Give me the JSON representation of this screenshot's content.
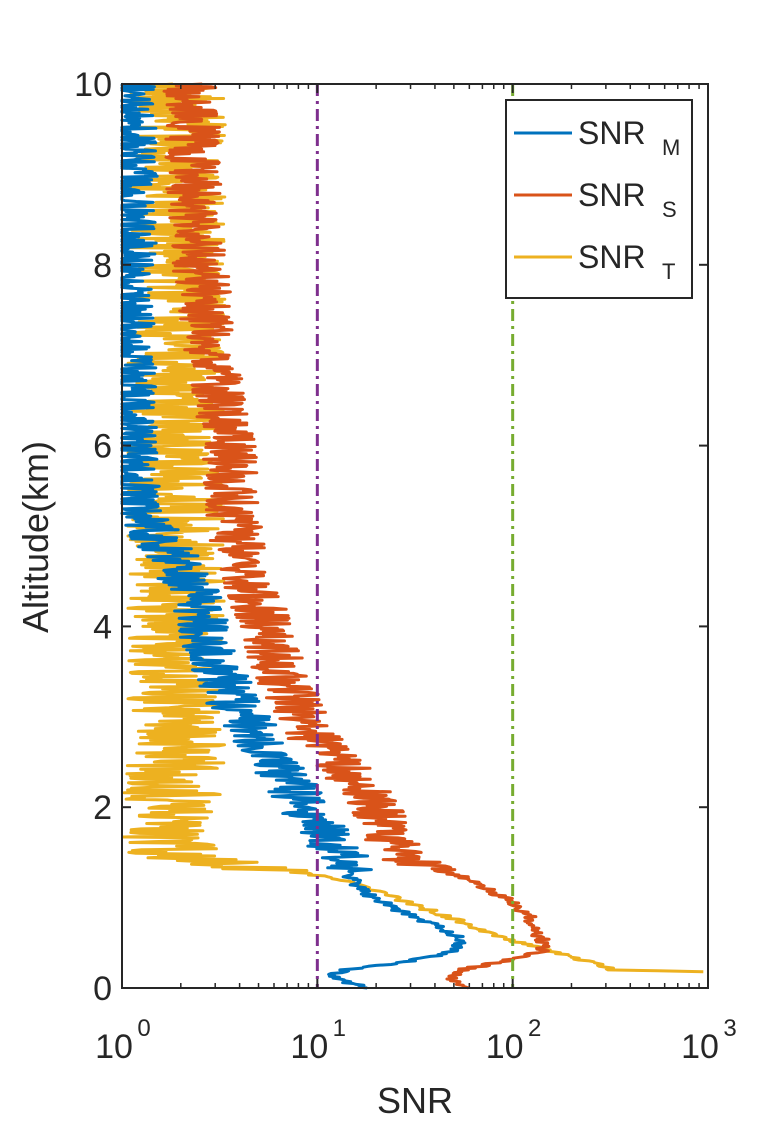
{
  "chart_data": {
    "type": "line",
    "xlabel": "SNR",
    "ylabel": "Altitude(km)",
    "xscale": "log",
    "xlim": [
      1,
      1000
    ],
    "ylim": [
      0,
      10
    ],
    "x_ticks": [
      {
        "value": 1,
        "base": "10",
        "exp": "0"
      },
      {
        "value": 10,
        "base": "10",
        "exp": "1"
      },
      {
        "value": 100,
        "base": "10",
        "exp": "2"
      },
      {
        "value": 1000,
        "base": "10",
        "exp": "3"
      }
    ],
    "y_ticks": [
      {
        "value": 0,
        "label": "0"
      },
      {
        "value": 2,
        "label": "2"
      },
      {
        "value": 4,
        "label": "4"
      },
      {
        "value": 6,
        "label": "6"
      },
      {
        "value": 8,
        "label": "8"
      },
      {
        "value": 10,
        "label": "10"
      }
    ],
    "legend_position": "top-right",
    "grid": false,
    "reference_lines": [
      {
        "x": 10,
        "color": "#7E2F8E",
        "style": "dash-dot"
      },
      {
        "x": 100,
        "color": "#77AC30",
        "style": "dash-dot"
      }
    ],
    "series": [
      {
        "name": "SNR",
        "subscript": "M",
        "color": "#0072BD",
        "points": [
          [
            17.5,
            0.0
          ],
          [
            12.5,
            0.1
          ],
          [
            12.0,
            0.15
          ],
          [
            14.0,
            0.2
          ],
          [
            30.0,
            0.3
          ],
          [
            48.0,
            0.4
          ],
          [
            55.0,
            0.5
          ],
          [
            50.0,
            0.6
          ],
          [
            40.0,
            0.7
          ],
          [
            30.0,
            0.8
          ],
          [
            24.0,
            0.9
          ],
          [
            19.0,
            1.0
          ],
          [
            15.0,
            1.2
          ],
          [
            14.0,
            1.4
          ],
          [
            12.0,
            1.6
          ],
          [
            10.0,
            1.8
          ],
          [
            8.5,
            2.0
          ],
          [
            7.5,
            2.2
          ],
          [
            6.5,
            2.4
          ],
          [
            5.5,
            2.6
          ],
          [
            4.8,
            2.8
          ],
          [
            4.2,
            3.0
          ],
          [
            3.6,
            3.2
          ],
          [
            3.3,
            3.4
          ],
          [
            3.0,
            3.6
          ],
          [
            2.8,
            3.8
          ],
          [
            2.6,
            4.0
          ],
          [
            2.5,
            4.2
          ],
          [
            2.3,
            4.4
          ],
          [
            2.0,
            4.6
          ],
          [
            1.8,
            4.8
          ],
          [
            1.5,
            5.0
          ],
          [
            1.3,
            5.2
          ],
          [
            1.2,
            5.4
          ],
          [
            1.1,
            5.6
          ],
          [
            1.1,
            6.0
          ],
          [
            1.1,
            7.0
          ],
          [
            1.1,
            8.0
          ],
          [
            1.1,
            9.0
          ],
          [
            1.1,
            10.0
          ]
        ]
      },
      {
        "name": "SNR",
        "subscript": "S",
        "color": "#D95319",
        "points": [
          [
            55.0,
            0.0
          ],
          [
            50.0,
            0.1
          ],
          [
            55.0,
            0.2
          ],
          [
            90.0,
            0.3
          ],
          [
            140.0,
            0.4
          ],
          [
            145.0,
            0.5
          ],
          [
            135.0,
            0.6
          ],
          [
            120.0,
            0.8
          ],
          [
            90.0,
            1.0
          ],
          [
            60.0,
            1.2
          ],
          [
            30.0,
            1.4
          ],
          [
            25.0,
            1.6
          ],
          [
            22.0,
            1.8
          ],
          [
            20.0,
            2.0
          ],
          [
            17.0,
            2.2
          ],
          [
            14.0,
            2.4
          ],
          [
            11.0,
            2.6
          ],
          [
            9.5,
            2.8
          ],
          [
            8.5,
            3.0
          ],
          [
            7.5,
            3.2
          ],
          [
            6.8,
            3.4
          ],
          [
            6.2,
            3.6
          ],
          [
            5.8,
            3.8
          ],
          [
            5.5,
            4.0
          ],
          [
            5.0,
            4.2
          ],
          [
            4.6,
            4.4
          ],
          [
            4.3,
            4.6
          ],
          [
            4.0,
            4.8
          ],
          [
            3.8,
            5.0
          ],
          [
            3.7,
            5.4
          ],
          [
            3.5,
            6.0
          ],
          [
            3.2,
            6.5
          ],
          [
            2.9,
            7.0
          ],
          [
            2.7,
            7.5
          ],
          [
            2.5,
            8.0
          ],
          [
            2.4,
            8.5
          ],
          [
            2.3,
            9.0
          ],
          [
            2.3,
            9.5
          ],
          [
            2.2,
            10.0
          ]
        ]
      },
      {
        "name": "SNR",
        "subscript": "T",
        "color": "#EDB120",
        "points": [
          [
            1000.0,
            0.18
          ],
          [
            330.0,
            0.2
          ],
          [
            240.0,
            0.3
          ],
          [
            160.0,
            0.4
          ],
          [
            110.0,
            0.5
          ],
          [
            80.0,
            0.6
          ],
          [
            60.0,
            0.7
          ],
          [
            45.0,
            0.8
          ],
          [
            33.0,
            0.9
          ],
          [
            25.0,
            1.0
          ],
          [
            18.0,
            1.1
          ],
          [
            13.0,
            1.2
          ],
          [
            7.0,
            1.3
          ],
          [
            2.5,
            1.4
          ],
          [
            1.7,
            1.5
          ],
          [
            1.8,
            1.8
          ],
          [
            1.8,
            2.2
          ],
          [
            1.9,
            2.6
          ],
          [
            1.9,
            3.0
          ],
          [
            1.9,
            3.5
          ],
          [
            1.9,
            4.0
          ],
          [
            1.9,
            5.0
          ],
          [
            1.9,
            6.0
          ],
          [
            1.9,
            7.0
          ],
          [
            1.9,
            8.0
          ],
          [
            1.9,
            9.0
          ],
          [
            1.9,
            10.0
          ]
        ]
      }
    ]
  }
}
